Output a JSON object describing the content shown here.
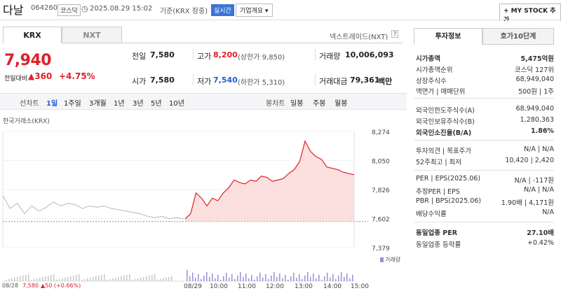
{
  "header": {
    "name": "다날",
    "code": "064260",
    "market_badge": "코스닥",
    "datetime": "2025.08.29 15:02",
    "basis": "기준(KRX 장중)",
    "realtime": "실시간",
    "overview_btn": "기업개요 ▾",
    "mystock_btn": "+ MY STOCK 추가"
  },
  "tabs": {
    "krx": "KRX",
    "nxt": "NXT"
  },
  "nextrade_label": "넥스트레이드(NXT)",
  "price": {
    "current": "7,940",
    "change_label": "전일대비",
    "change": "▲360",
    "change_pct": "+4.75%"
  },
  "summary": {
    "prev_label": "전일",
    "prev_value": "7,580",
    "high_label": "고가",
    "high_value": "8,200",
    "upper_limit": "(상한가 9,850)",
    "volume_label": "거래량",
    "volume_value": "10,006,093",
    "open_label": "시가",
    "open_value": "7,580",
    "low_label": "저가",
    "low_value": "7,540",
    "lower_limit": "(하한가 5,310)",
    "amount_label": "거래대금",
    "amount_value": "79,361",
    "amount_unit": "백만"
  },
  "periods": {
    "line_label": "선차트",
    "items": [
      "1일",
      "1주일",
      "3개월",
      "1년",
      "3년",
      "5년",
      "10년"
    ],
    "candle_label": "봉차트",
    "candle_items": [
      "일봉",
      "주봉",
      "월봉"
    ]
  },
  "chart_source": "한국거래소(KRX)",
  "volume_legend": "거래량",
  "chart_footer": {
    "date": "08/28",
    "prev_price": "7,580",
    "prev_change": "▲50 (+0.66%)"
  },
  "chart_data": {
    "type": "line",
    "y_ticks": [
      "8,274",
      "8,050",
      "7,826",
      "7,602",
      "7,379"
    ],
    "ylim": [
      7379,
      8274
    ],
    "x_ticks": [
      "08/29",
      "10:00",
      "11:00",
      "12:00",
      "13:00",
      "14:00",
      "15:00"
    ],
    "reference_line": 7580,
    "prev_day_series": [
      7780,
      7680,
      7720,
      7640,
      7700,
      7660,
      7690,
      7730,
      7700,
      7720,
      7710,
      7680,
      7700,
      7690,
      7700,
      7680,
      7670,
      7660,
      7650,
      7640,
      7620,
      7610,
      7620,
      7600,
      7610,
      7600
    ],
    "today_series": [
      7600,
      7640,
      7800,
      7760,
      7700,
      7760,
      7740,
      7800,
      7840,
      7900,
      7880,
      7870,
      7900,
      7890,
      7930,
      7920,
      7890,
      7900,
      7910,
      7950,
      7980,
      8040,
      8200,
      8120,
      8080,
      8060,
      8000,
      7990,
      7980,
      7960,
      7950,
      7940
    ]
  },
  "side_tabs": {
    "invest": "투자정보",
    "ask": "호가10단계"
  },
  "side": {
    "market_cap_label": "시가총액",
    "market_cap_value": "5,475억원",
    "rank_label": "시가총액순위",
    "rank_value": "코스닥 127위",
    "shares_label": "상장주식수",
    "shares_value": "68,949,040",
    "par_label": "액면가 | 매매단위",
    "par_value": "500원 | 1주",
    "foreign_limit_label": "외국인한도주식수(A)",
    "foreign_limit_value": "68,949,040",
    "foreign_hold_label": "외국인보유주식수(B)",
    "foreign_hold_value": "1,280,363",
    "foreign_ratio_label": "외국인소진율(B/A)",
    "foreign_ratio_value": "1.86%",
    "opinion_label": "투자의견 | 목표주가",
    "opinion_value": "N/A | N/A",
    "w52_label": "52주최고 | 최저",
    "w52_value": "10,420 | 2,420",
    "per_label": "PER | EPS(2025.06)",
    "per_value": "N/A | -117원",
    "est_per_label": "추정PER | EPS",
    "est_per_value": "N/A | N/A",
    "pbr_label": "PBR | BPS(2025.06)",
    "pbr_value": "1.90배 | 4,171원",
    "dividend_label": "배당수익률",
    "dividend_value": "N/A",
    "sector_per_label": "동일업종 PER",
    "sector_per_value": "27.10배",
    "sector_rate_label": "동일업종 등락률",
    "sector_rate_value": "+0.42%"
  }
}
